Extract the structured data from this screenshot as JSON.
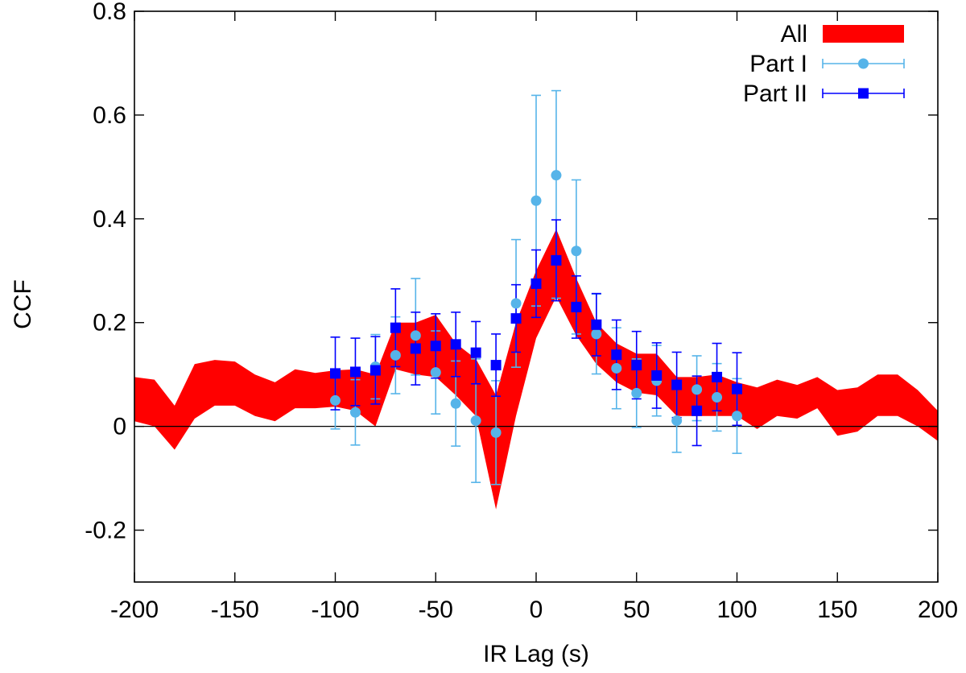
{
  "chart_data": {
    "type": "line",
    "title": "",
    "xlabel": "IR Lag (s)",
    "ylabel": "CCF",
    "xlim": [
      -200,
      200
    ],
    "ylim": [
      -0.3,
      0.8
    ],
    "xticks": [
      -200,
      -150,
      -100,
      -50,
      0,
      50,
      100,
      150,
      200
    ],
    "xtick_labels": [
      "-200",
      "-150",
      "-100",
      "-50",
      "0",
      "50",
      "100",
      "150",
      "200"
    ],
    "yticks": [
      -0.2,
      0,
      0.2,
      0.4,
      0.6,
      0.8
    ],
    "ytick_labels": [
      "-0.2",
      "0",
      "0.2",
      "0.4",
      "0.6",
      "0.8"
    ],
    "grid": false,
    "legend_position": "top-right",
    "zero_line": true,
    "colors": {
      "all": "#ff0000",
      "part1": "#56b4e9",
      "part2": "#0000ff",
      "axis": "#000000"
    },
    "series": [
      {
        "name": "All",
        "style": "filled-band",
        "x": [
          -200,
          -190,
          -180,
          -170,
          -160,
          -150,
          -140,
          -130,
          -120,
          -110,
          -100,
          -90,
          -80,
          -70,
          -60,
          -50,
          -40,
          -30,
          -20,
          -10,
          0,
          10,
          20,
          30,
          40,
          50,
          60,
          70,
          80,
          90,
          100,
          110,
          120,
          130,
          140,
          150,
          160,
          170,
          180,
          190,
          200
        ],
        "upper": [
          0.095,
          0.09,
          0.04,
          0.12,
          0.128,
          0.125,
          0.1,
          0.085,
          0.11,
          0.103,
          0.108,
          0.11,
          0.1,
          0.2,
          0.2,
          0.215,
          0.16,
          0.13,
          0.06,
          0.2,
          0.3,
          0.38,
          0.285,
          0.2,
          0.16,
          0.14,
          0.14,
          0.095,
          0.095,
          0.1,
          0.085,
          0.075,
          0.09,
          0.08,
          0.095,
          0.07,
          0.075,
          0.1,
          0.1,
          0.07,
          0.03
        ],
        "lower": [
          0.01,
          0.0,
          -0.045,
          0.015,
          0.04,
          0.04,
          0.02,
          0.01,
          0.035,
          0.035,
          0.038,
          0.03,
          0.0,
          0.11,
          0.1,
          0.095,
          0.06,
          0.02,
          -0.16,
          0.02,
          0.17,
          0.25,
          0.175,
          0.12,
          0.085,
          0.065,
          0.06,
          0.02,
          0.02,
          0.02,
          0.02,
          -0.005,
          0.02,
          0.015,
          0.035,
          -0.018,
          -0.01,
          0.02,
          0.02,
          0.0,
          -0.028
        ]
      },
      {
        "name": "Part I",
        "style": "circles-errorbars",
        "x": [
          -100,
          -90,
          -80,
          -70,
          -60,
          -50,
          -40,
          -30,
          -20,
          -10,
          0,
          10,
          20,
          30,
          40,
          50,
          60,
          70,
          80,
          90,
          100
        ],
        "values": [
          0.05,
          0.027,
          0.115,
          0.137,
          0.175,
          0.104,
          0.044,
          0.011,
          -0.012,
          0.237,
          0.435,
          0.484,
          0.338,
          0.178,
          0.112,
          0.064,
          0.088,
          0.011,
          0.071,
          0.056,
          0.02
        ],
        "err_low": [
          0.055,
          0.063,
          0.062,
          0.074,
          0.076,
          0.08,
          0.082,
          0.119,
          0.1,
          0.123,
          0.203,
          0.237,
          0.16,
          0.077,
          0.078,
          0.066,
          0.068,
          0.061,
          0.06,
          0.065,
          0.072
        ],
        "err_high": [
          0.055,
          0.063,
          0.062,
          0.074,
          0.11,
          0.08,
          0.082,
          0.119,
          0.1,
          0.123,
          0.203,
          0.163,
          0.137,
          0.077,
          0.078,
          0.066,
          0.068,
          0.061,
          0.065,
          0.065,
          0.072
        ]
      },
      {
        "name": "Part II",
        "style": "squares-errorbars",
        "x": [
          -100,
          -90,
          -80,
          -70,
          -60,
          -50,
          -40,
          -30,
          -20,
          -10,
          0,
          10,
          20,
          30,
          40,
          50,
          60,
          70,
          80,
          90,
          100
        ],
        "values": [
          0.102,
          0.105,
          0.108,
          0.19,
          0.15,
          0.155,
          0.158,
          0.142,
          0.118,
          0.208,
          0.275,
          0.32,
          0.23,
          0.196,
          0.138,
          0.118,
          0.098,
          0.08,
          0.03,
          0.095,
          0.072
        ],
        "err_low": [
          0.07,
          0.065,
          0.065,
          0.075,
          0.07,
          0.062,
          0.062,
          0.06,
          0.06,
          0.065,
          0.065,
          0.078,
          0.06,
          0.06,
          0.067,
          0.065,
          0.063,
          0.063,
          0.067,
          0.065,
          0.07
        ],
        "err_high": [
          0.07,
          0.065,
          0.065,
          0.075,
          0.07,
          0.062,
          0.062,
          0.06,
          0.06,
          0.065,
          0.065,
          0.078,
          0.06,
          0.06,
          0.067,
          0.065,
          0.063,
          0.063,
          0.067,
          0.065,
          0.07
        ]
      }
    ]
  }
}
